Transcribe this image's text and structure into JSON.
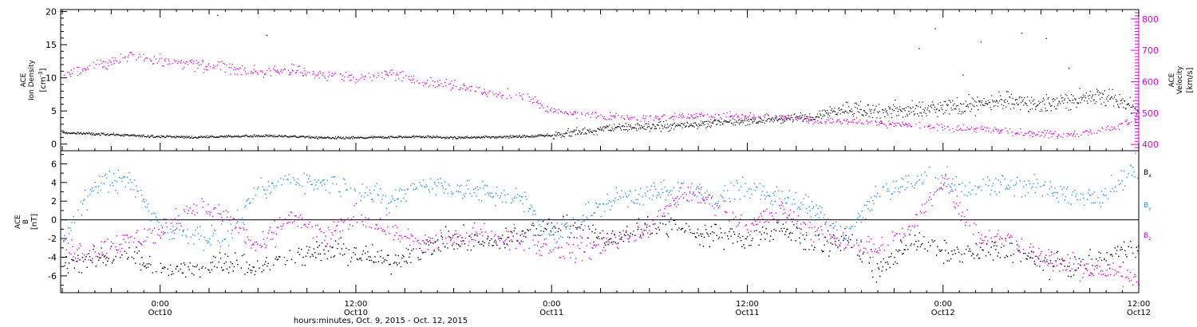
{
  "colors": {
    "black": "#000000",
    "magenta": "#e000e0",
    "blue": "#1e90ff"
  },
  "time_axis": {
    "xlabel": "hours:minutes, Oct.  9, 2015 - Oct. 12, 2015",
    "ticks": [
      {
        "hour": 0,
        "time": "0:00",
        "day": "Oct10"
      },
      {
        "hour": 12,
        "time": "12:00",
        "day": "Oct10"
      },
      {
        "hour": 24,
        "time": "0:00",
        "day": "Oct11"
      },
      {
        "hour": 36,
        "time": "12:00",
        "day": "Oct11"
      },
      {
        "hour": 48,
        "time": "0:00",
        "day": "Oct12"
      },
      {
        "hour": 60,
        "time": "12:00",
        "day": "Oct12"
      }
    ],
    "xlim_hours": [
      -6.1,
      60
    ]
  },
  "chart_data": [
    {
      "type": "scatter",
      "panel": "density-velocity",
      "x_unit": "hours from Oct10 0:00",
      "left_axis": {
        "label_lines": [
          "ACE",
          "Ion Density"
        ],
        "unit_base": "[cm",
        "unit_sup": "-3",
        "unit_end": "]",
        "ylim": [
          -1,
          20.3
        ],
        "ticks": [
          0,
          5,
          10,
          15,
          20
        ]
      },
      "right_axis": {
        "label_lines": [
          "ACE",
          "Velocity"
        ],
        "unit": "[km/s]",
        "ylim": [
          380,
          830
        ],
        "ticks": [
          400,
          500,
          600,
          700,
          800
        ]
      },
      "series": [
        {
          "axis": "left",
          "color": "black",
          "x": [
            -6,
            -4,
            -2,
            0,
            2,
            4,
            6,
            8,
            10,
            12,
            14,
            16,
            18,
            20,
            22,
            24,
            26,
            28,
            30,
            32,
            34,
            36,
            38,
            40,
            42,
            44,
            46,
            48,
            50,
            52,
            54,
            56,
            58,
            60
          ],
          "y": [
            1.8,
            1.6,
            1.4,
            1.2,
            1.1,
            1.2,
            1.3,
            1.2,
            1.0,
            1.0,
            1.1,
            1.2,
            1.0,
            1.1,
            1.2,
            1.4,
            2.0,
            2.5,
            2.7,
            3.0,
            3.3,
            3.6,
            3.9,
            4.2,
            5.5,
            5.0,
            5.2,
            5.5,
            6.0,
            6.5,
            6.0,
            6.8,
            7.5,
            5.0
          ]
        },
        {
          "axis": "right",
          "color": "magenta",
          "x": [
            -6,
            -4,
            -2,
            0,
            2,
            4,
            6,
            8,
            10,
            12,
            14,
            16,
            18,
            20,
            22,
            24,
            26,
            28,
            30,
            32,
            34,
            36,
            38,
            40,
            42,
            44,
            46,
            48,
            50,
            52,
            54,
            56,
            58,
            60
          ],
          "y": [
            620,
            650,
            680,
            670,
            655,
            650,
            630,
            640,
            620,
            610,
            630,
            600,
            590,
            570,
            560,
            510,
            495,
            490,
            485,
            490,
            492,
            490,
            488,
            480,
            475,
            470,
            460,
            455,
            450,
            445,
            435,
            430,
            450,
            480
          ]
        }
      ],
      "spikes_left": [
        {
          "x": 3.5,
          "y": 19.5
        },
        {
          "x": 6.5,
          "y": 16.5
        },
        {
          "x": 47.5,
          "y": 17.5
        },
        {
          "x": 50.3,
          "y": 15.5
        },
        {
          "x": 52.8,
          "y": 16.8
        },
        {
          "x": 54.3,
          "y": 16.0
        },
        {
          "x": 46.5,
          "y": 14.5
        },
        {
          "x": 49.2,
          "y": 10.5
        },
        {
          "x": 55.7,
          "y": 11.5
        }
      ]
    },
    {
      "type": "scatter",
      "panel": "magnetic-field",
      "x_unit": "hours from Oct10 0:00",
      "y_axis": {
        "label_lines": [
          "ACE",
          "B"
        ],
        "unit": "[nT]",
        "ylim": [
          -7.8,
          7.4
        ],
        "ticks": [
          -6,
          -4,
          -2,
          0,
          2,
          4,
          6
        ]
      },
      "zero_line": true,
      "series": [
        {
          "name_base": "B",
          "name_sub": "x",
          "color": "black",
          "x": [
            -6,
            -4,
            -2,
            0,
            2,
            4,
            6,
            8,
            10,
            12,
            14,
            16,
            18,
            20,
            22,
            24,
            26,
            28,
            30,
            32,
            34,
            36,
            38,
            40,
            42,
            44,
            46,
            48,
            50,
            52,
            54,
            56,
            58,
            60
          ],
          "y": [
            -4.5,
            -4.2,
            -3.5,
            -5.5,
            -5.3,
            -4.2,
            -5.0,
            -4.0,
            -3.2,
            -3.5,
            -4.5,
            -3.0,
            -2.0,
            -2.5,
            -1.5,
            -0.5,
            -1.0,
            -2.0,
            -0.5,
            -1.0,
            -1.5,
            -2.0,
            -1.0,
            -2.5,
            -2.0,
            -5.5,
            -2.0,
            -3.5,
            -3.5,
            -3.0,
            -4.5,
            -5.0,
            -4.2,
            -2.5
          ]
        },
        {
          "name_base": "B",
          "name_sub": "y",
          "color": "blue",
          "x": [
            -6,
            -4,
            -2,
            0,
            2,
            4,
            6,
            8,
            10,
            12,
            14,
            16,
            18,
            20,
            22,
            24,
            26,
            28,
            30,
            32,
            34,
            36,
            38,
            40,
            42,
            44,
            46,
            48,
            50,
            52,
            54,
            56,
            58,
            60
          ],
          "y": [
            -2.5,
            4.0,
            4.5,
            -0.5,
            -1.5,
            -2.0,
            3.0,
            4.5,
            4.0,
            3.5,
            2.0,
            4.0,
            3.5,
            3.0,
            2.5,
            -1.5,
            0.5,
            2.5,
            3.0,
            3.0,
            2.5,
            3.5,
            2.5,
            1.5,
            -1.5,
            3.0,
            4.0,
            4.5,
            3.0,
            4.0,
            3.5,
            2.5,
            3.0,
            6.0
          ]
        },
        {
          "name_base": "B",
          "name_sub": "z",
          "color": "magenta",
          "x": [
            -6,
            -4,
            -2,
            0,
            2,
            4,
            6,
            8,
            10,
            12,
            14,
            16,
            18,
            20,
            22,
            24,
            26,
            28,
            30,
            32,
            34,
            36,
            38,
            40,
            42,
            44,
            46,
            48,
            50,
            52,
            54,
            56,
            58,
            60
          ],
          "y": [
            -3.0,
            -3.5,
            -2.0,
            -1.5,
            1.5,
            0.5,
            -3.0,
            0.5,
            -2.0,
            0.5,
            -1.0,
            -2.5,
            -2.0,
            -1.5,
            -2.0,
            -3.0,
            -3.2,
            -2.0,
            -1.0,
            3.0,
            2.0,
            -0.5,
            1.0,
            -1.0,
            -2.5,
            -3.0,
            -1.0,
            4.5,
            -1.5,
            -2.0,
            -4.0,
            -5.0,
            -5.5,
            -6.0
          ]
        }
      ]
    }
  ]
}
